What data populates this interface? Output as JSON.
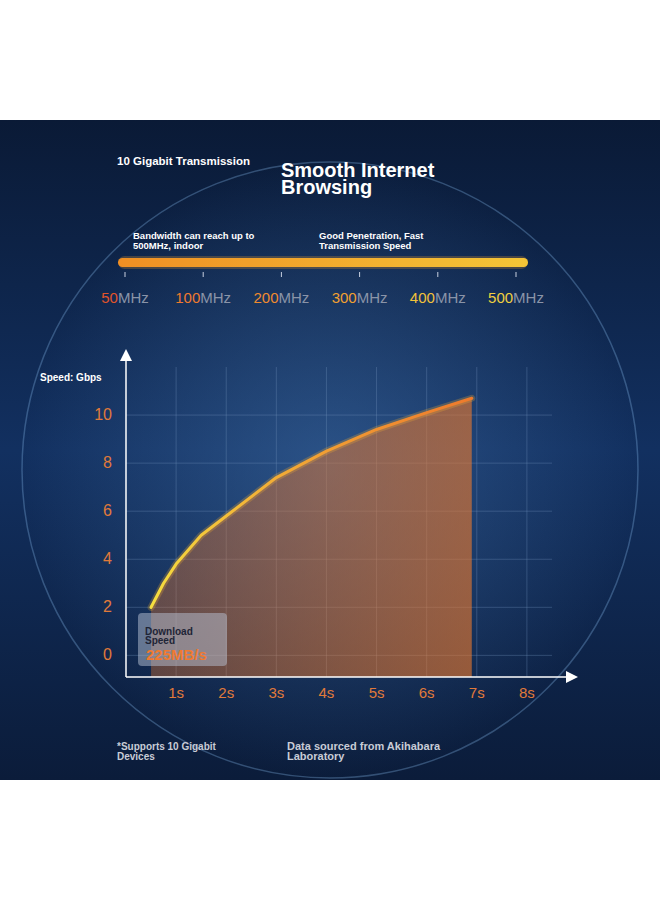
{
  "header": {
    "subtitle": "10 Gigabit Transmission",
    "title": "Smooth Internet Browsing"
  },
  "frequency_bar": {
    "annotations": [
      "Bandwidth can reach up to 500MHz, indoor",
      "Good Penetration, Fast Transmission Speed"
    ],
    "labels": [
      "50MHz",
      "100MHz",
      "200MHz",
      "300MHz",
      "400MHz",
      "500MHz"
    ]
  },
  "chart_data": {
    "type": "area",
    "y_label": "Speed: Gbps",
    "x": [
      0.5,
      0.75,
      1,
      1.5,
      2,
      3,
      4,
      5,
      6,
      6.9
    ],
    "values": [
      2.0,
      3.0,
      3.8,
      5.0,
      5.8,
      7.4,
      8.5,
      9.4,
      10.1,
      10.7
    ],
    "color": "#ee7a2c",
    "xlim": [
      0,
      8.9
    ],
    "ylim": [
      -0.9,
      12.5
    ],
    "xticks": [
      {
        "value": 1,
        "label": "1s"
      },
      {
        "value": 2,
        "label": "2s"
      },
      {
        "value": 3,
        "label": "3s"
      },
      {
        "value": 4,
        "label": "4s"
      },
      {
        "value": 5,
        "label": "5s"
      },
      {
        "value": 6,
        "label": "6s"
      },
      {
        "value": 7,
        "label": "7s"
      },
      {
        "value": 8,
        "label": "8s"
      }
    ],
    "yticks": [
      0,
      2,
      4,
      6,
      8,
      10
    ],
    "grid": true,
    "annotation": [
      "Download Speed",
      "225MB/s"
    ]
  },
  "footer": {
    "note": "*Supports 10 Gigabit Devices",
    "source": "Data sourced from Akihabara Laboratory"
  }
}
